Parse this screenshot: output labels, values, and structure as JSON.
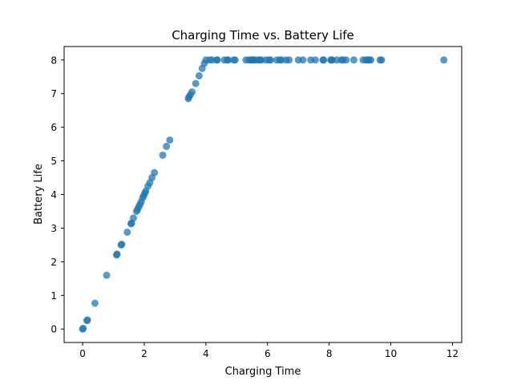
{
  "chart_data": {
    "type": "scatter",
    "title": "Charging Time vs. Battery Life",
    "xlabel": "Charging Time",
    "ylabel": "Battery Life",
    "xlim": [
      -0.6,
      12.3
    ],
    "ylim": [
      -0.4,
      8.4
    ],
    "xticks": [
      0,
      2,
      4,
      6,
      8,
      10,
      12
    ],
    "yticks": [
      0,
      1,
      2,
      3,
      4,
      5,
      6,
      7,
      8
    ],
    "xtick_labels": [
      "0",
      "2",
      "4",
      "6",
      "8",
      "10",
      "12"
    ],
    "ytick_labels": [
      "0",
      "1",
      "2",
      "3",
      "4",
      "5",
      "6",
      "7",
      "8"
    ],
    "grid": false,
    "point_color": "#1f77b4",
    "point_alpha": 0.75,
    "x": [
      0.0,
      0.02,
      0.14,
      0.16,
      0.4,
      0.78,
      1.1,
      1.12,
      1.25,
      1.27,
      1.45,
      1.57,
      1.59,
      1.65,
      1.75,
      1.78,
      1.82,
      1.86,
      1.9,
      1.95,
      1.98,
      2.02,
      2.05,
      2.12,
      2.18,
      2.25,
      2.33,
      2.6,
      2.72,
      2.83,
      3.43,
      3.45,
      3.5,
      3.55,
      3.67,
      3.78,
      3.88,
      3.95,
      4.0,
      4.12,
      4.2,
      4.35,
      4.37,
      4.6,
      4.7,
      4.72,
      4.9,
      4.95,
      5.3,
      5.4,
      5.45,
      5.5,
      5.55,
      5.6,
      5.7,
      5.75,
      5.8,
      5.95,
      6.05,
      6.1,
      6.3,
      6.4,
      6.45,
      6.6,
      6.7,
      7.0,
      7.15,
      7.4,
      7.55,
      7.8,
      7.82,
      8.05,
      8.08,
      8.1,
      8.25,
      8.4,
      8.45,
      8.55,
      8.8,
      9.1,
      9.2,
      9.25,
      9.3,
      9.35,
      9.65,
      9.7,
      11.72
    ],
    "y": [
      0.0,
      0.02,
      0.25,
      0.27,
      0.77,
      1.6,
      2.2,
      2.23,
      2.5,
      2.52,
      2.88,
      3.13,
      3.15,
      3.3,
      3.5,
      3.55,
      3.63,
      3.7,
      3.78,
      3.9,
      3.96,
      4.04,
      4.1,
      4.25,
      4.35,
      4.5,
      4.65,
      5.17,
      5.43,
      5.62,
      6.85,
      6.9,
      6.97,
      7.05,
      7.3,
      7.53,
      7.75,
      7.9,
      8.0,
      8.0,
      8.0,
      8.0,
      8.0,
      8.0,
      8.0,
      8.0,
      8.0,
      8.0,
      8.0,
      8.0,
      8.0,
      8.0,
      8.0,
      8.0,
      8.0,
      8.0,
      8.0,
      8.0,
      8.0,
      8.0,
      8.0,
      8.0,
      8.0,
      8.0,
      8.0,
      8.0,
      8.0,
      8.0,
      8.0,
      8.0,
      8.0,
      8.0,
      8.0,
      8.0,
      8.0,
      8.0,
      8.0,
      8.0,
      8.0,
      8.0,
      8.0,
      8.0,
      8.0,
      8.0,
      8.0,
      8.0,
      8.0
    ]
  }
}
